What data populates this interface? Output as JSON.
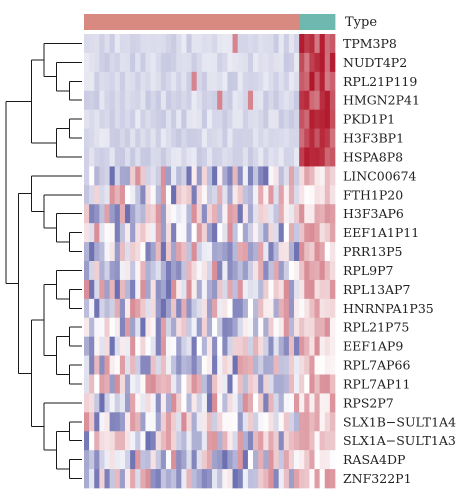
{
  "chart_data": {
    "type": "heatmap",
    "annotation": {
      "label": "Type",
      "groups": [
        {
          "count": 42,
          "color": "#D98A80"
        },
        {
          "count": 7,
          "color": "#6FB8B0"
        }
      ]
    },
    "rows": [
      "TPM3P8",
      "NUDT4P2",
      "RPL21P119",
      "HMGN2P41",
      "PKD1P1",
      "H3F3BP1",
      "HSPA8P8",
      "LINC00674",
      "FTH1P20",
      "H3F3AP6",
      "EEF1A1P11",
      "PRR13P5",
      "RPL9P7",
      "RPL13AP7",
      "HNRNPA1P35",
      "RPL21P75",
      "EEF1AP9",
      "RPL7AP66",
      "RPL7AP11",
      "RPS2P7",
      "SLX1B−SULT1A4",
      "SLX1A−SULT1A3",
      "RASA4DP",
      "ZNF322P1"
    ],
    "n_columns": 49,
    "color_scale": {
      "low": "#2B2F8E",
      "mid": "#FFFFFF",
      "high": "#B2182B"
    },
    "value_range": [
      -3,
      3
    ],
    "dendrogram": "rows",
    "grid": false,
    "legend": "none"
  }
}
